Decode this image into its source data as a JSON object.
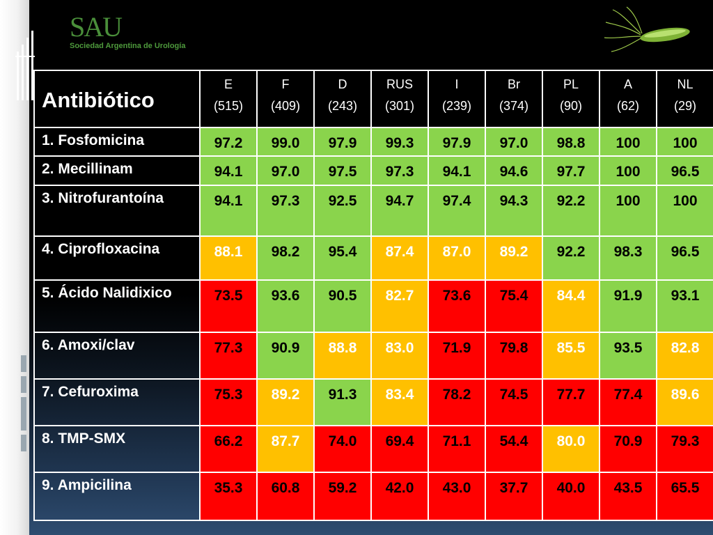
{
  "logo": {
    "mark": "SAU",
    "subtitle": "Sociedad Argentina de Urología"
  },
  "table": {
    "header_title": "Antibiótico",
    "columns": [
      {
        "code": "E",
        "n": "(515)"
      },
      {
        "code": "F",
        "n": "(409)"
      },
      {
        "code": "D",
        "n": "(243)"
      },
      {
        "code": "RUS",
        "n": "(301)"
      },
      {
        "code": "I",
        "n": "(239)"
      },
      {
        "code": "Br",
        "n": "(374)"
      },
      {
        "code": "PL",
        "n": "(90)"
      },
      {
        "code": "A",
        "n": "(62)"
      },
      {
        "code": "NL",
        "n": "(29)"
      }
    ],
    "rows": [
      {
        "name": "1. Fosfomicina",
        "values": [
          "97.2",
          "99.0",
          "97.9",
          "99.3",
          "97.9",
          "97.0",
          "98.8",
          "100",
          "100"
        ],
        "colors": [
          "g",
          "g",
          "g",
          "g",
          "g",
          "g",
          "g",
          "g",
          "g"
        ]
      },
      {
        "name": "2. Mecillinam",
        "values": [
          "94.1",
          "97.0",
          "97.5",
          "97.3",
          "94.1",
          "94.6",
          "97.7",
          "100",
          "96.5"
        ],
        "colors": [
          "g",
          "g",
          "g",
          "g",
          "g",
          "g",
          "g",
          "g",
          "g"
        ]
      },
      {
        "name": "3. Nitrofurantoína",
        "values": [
          "94.1",
          "97.3",
          "92.5",
          "94.7",
          "97.4",
          "94.3",
          "92.2",
          "100",
          "100"
        ],
        "colors": [
          "g",
          "g",
          "g",
          "g",
          "g",
          "g",
          "g",
          "g",
          "g"
        ]
      },
      {
        "name": "4. Ciprofloxacina",
        "values": [
          "88.1",
          "98.2",
          "95.4",
          "87.4",
          "87.0",
          "89.2",
          "92.2",
          "98.3",
          "96.5"
        ],
        "colors": [
          "y",
          "g",
          "g",
          "y",
          "y",
          "y",
          "g",
          "g",
          "g"
        ]
      },
      {
        "name": "5. Ácido Nalidixico",
        "values": [
          "73.5",
          "93.6",
          "90.5",
          "82.7",
          "73.6",
          "75.4",
          "84.4",
          "91.9",
          "93.1"
        ],
        "colors": [
          "r",
          "g",
          "g",
          "y",
          "r",
          "r",
          "y",
          "g",
          "g"
        ]
      },
      {
        "name": "6. Amoxi/clav",
        "values": [
          "77.3",
          "90.9",
          "88.8",
          "83.0",
          "71.9",
          "79.8",
          "85.5",
          "93.5",
          "82.8"
        ],
        "colors": [
          "r",
          "g",
          "y",
          "y",
          "r",
          "r",
          "y",
          "g",
          "y"
        ]
      },
      {
        "name": "7. Cefuroxima",
        "values": [
          "75.3",
          "89.2",
          "91.3",
          "83.4",
          "78.2",
          "74.5",
          "77.7",
          "77.4",
          "89.6"
        ],
        "colors": [
          "r",
          "y",
          "g",
          "y",
          "r",
          "r",
          "r",
          "r",
          "y"
        ]
      },
      {
        "name": "8. TMP-SMX",
        "values": [
          "66.2",
          "87.7",
          "74.0",
          "69.4",
          "71.1",
          "54.4",
          "80.0",
          "70.9",
          "79.3"
        ],
        "colors": [
          "r",
          "y",
          "r",
          "r",
          "r",
          "r",
          "y",
          "r",
          "r"
        ]
      },
      {
        "name": "9. Ampicilina",
        "values": [
          "35.3",
          "60.8",
          "59.2",
          "42.0",
          "43.0",
          "37.7",
          "40.0",
          "43.5",
          "65.5"
        ],
        "colors": [
          "r",
          "r",
          "r",
          "r",
          "r",
          "r",
          "r",
          "r",
          "r"
        ]
      }
    ]
  }
}
